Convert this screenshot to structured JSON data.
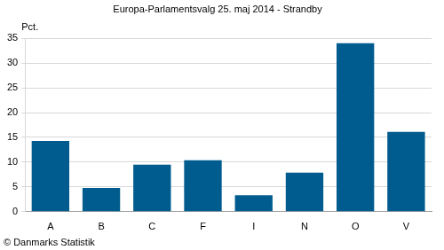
{
  "chart_data": {
    "type": "bar",
    "title": "Europa-Parlamentsvalg 25. maj 2014 - Strandby",
    "y_label": "Pct.",
    "annotations": [
      "© Danmarks Statistik"
    ],
    "categories": [
      "A",
      "B",
      "C",
      "F",
      "I",
      "N",
      "O",
      "V"
    ],
    "values": [
      14.3,
      4.8,
      9.5,
      10.4,
      3.3,
      7.9,
      34.0,
      16.1
    ],
    "color": "#005c8e",
    "ylim": [
      0,
      35
    ],
    "yticks": [
      0,
      5,
      10,
      15,
      20,
      25,
      30,
      35
    ],
    "grid": true
  }
}
